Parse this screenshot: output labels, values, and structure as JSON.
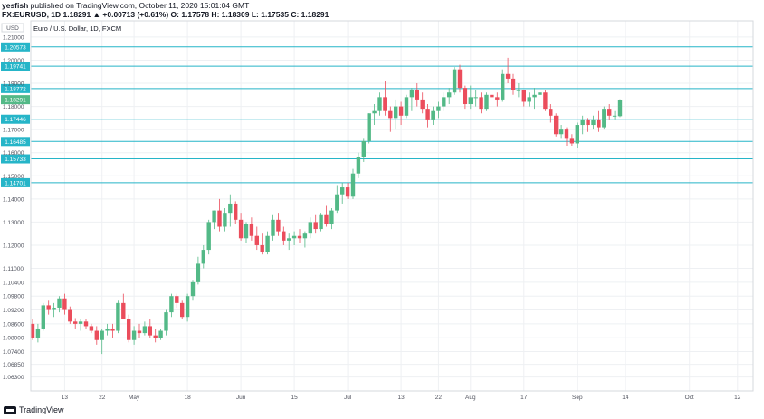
{
  "header": {
    "line1_user": "yesfish",
    "line1_rest": "published on TradingView.com, October 11, 2020 15:01:04 GMT",
    "line2": "FX:EURUSD, 1D  1.18291  ▲ +0.00713 (+0.61%) O: 1.17578  H: 1.18309  L: 1.17535  C: 1.18291"
  },
  "footer": {
    "brand": "TradingView"
  },
  "chart_data": {
    "type": "candlestick",
    "title": "Euro / U.S. Dollar, 1D, FXCM",
    "currency_label": "USD",
    "ylim": [
      1.057,
      1.217
    ],
    "y_ticks": [
      "1.06300",
      "1.06850",
      "1.07400",
      "1.08000",
      "1.08600",
      "1.09200",
      "1.09800",
      "1.10400",
      "1.11000",
      "1.12000",
      "1.13000",
      "1.14000",
      "1.15000",
      "1.16000",
      "1.17000",
      "1.18000",
      "1.19000",
      "1.20000",
      "1.21000"
    ],
    "x_ticks": [
      {
        "label": "13",
        "index": 6
      },
      {
        "label": "22",
        "index": 13
      },
      {
        "label": "May",
        "index": 19
      },
      {
        "label": "18",
        "index": 29
      },
      {
        "label": "Jun",
        "index": 39
      },
      {
        "label": "15",
        "index": 49
      },
      {
        "label": "Jul",
        "index": 59
      },
      {
        "label": "13",
        "index": 69
      },
      {
        "label": "22",
        "index": 76
      },
      {
        "label": "Aug",
        "index": 82
      },
      {
        "label": "17",
        "index": 92
      },
      {
        "label": "Sep",
        "index": 102
      },
      {
        "label": "14",
        "index": 111
      },
      {
        "label": "Oct",
        "index": 123
      },
      {
        "label": "12",
        "index": 132
      }
    ],
    "horizontal_levels": [
      {
        "value": 1.20573,
        "label": "1.20573"
      },
      {
        "value": 1.19741,
        "label": "1.19741"
      },
      {
        "value": 1.18772,
        "label": "1.18772"
      },
      {
        "value": 1.17446,
        "label": "1.17446"
      },
      {
        "value": 1.16485,
        "label": "1.16485"
      },
      {
        "value": 1.15733,
        "label": "1.15733"
      },
      {
        "value": 1.14701,
        "label": "1.14701"
      }
    ],
    "last_price": {
      "value": 1.18291,
      "label": "1.18291"
    },
    "colors": {
      "up": "#53b987",
      "down": "#eb4d5c",
      "level": "#26b5c8",
      "grid": "#eef0f3",
      "axis_text": "#50535e"
    },
    "candles": [
      [
        1.086,
        1.088,
        1.079,
        1.08
      ],
      [
        1.08,
        1.086,
        1.078,
        1.084
      ],
      [
        1.084,
        1.095,
        1.083,
        1.094
      ],
      [
        1.094,
        1.096,
        1.09,
        1.092
      ],
      [
        1.092,
        1.095,
        1.089,
        1.093
      ],
      [
        1.093,
        1.098,
        1.091,
        1.097
      ],
      [
        1.097,
        1.099,
        1.09,
        1.092
      ],
      [
        1.092,
        1.0935,
        1.086,
        1.087
      ],
      [
        1.087,
        1.0885,
        1.084,
        1.086
      ],
      [
        1.086,
        1.088,
        1.083,
        1.087
      ],
      [
        1.087,
        1.088,
        1.084,
        1.085
      ],
      [
        1.085,
        1.086,
        1.082,
        1.083
      ],
      [
        1.083,
        1.085,
        1.077,
        1.079
      ],
      [
        1.079,
        1.084,
        1.073,
        1.083
      ],
      [
        1.083,
        1.086,
        1.081,
        1.084
      ],
      [
        1.084,
        1.086,
        1.08,
        1.083
      ],
      [
        1.083,
        1.096,
        1.082,
        1.095
      ],
      [
        1.095,
        1.099,
        1.088,
        1.088
      ],
      [
        1.088,
        1.09,
        1.078,
        1.079
      ],
      [
        1.079,
        1.085,
        1.077,
        1.083
      ],
      [
        1.083,
        1.086,
        1.08,
        1.082
      ],
      [
        1.082,
        1.087,
        1.081,
        1.085
      ],
      [
        1.085,
        1.088,
        1.08,
        1.081
      ],
      [
        1.081,
        1.084,
        1.078,
        1.08
      ],
      [
        1.08,
        1.084,
        1.079,
        1.083
      ],
      [
        1.083,
        1.092,
        1.081,
        1.091
      ],
      [
        1.091,
        1.099,
        1.089,
        1.098
      ],
      [
        1.098,
        1.099,
        1.093,
        1.095
      ],
      [
        1.095,
        1.096,
        1.088,
        1.089
      ],
      [
        1.089,
        1.099,
        1.087,
        1.098
      ],
      [
        1.098,
        1.105,
        1.096,
        1.104
      ],
      [
        1.104,
        1.115,
        1.103,
        1.112
      ],
      [
        1.112,
        1.12,
        1.11,
        1.118
      ],
      [
        1.118,
        1.131,
        1.116,
        1.13
      ],
      [
        1.13,
        1.135,
        1.127,
        1.135
      ],
      [
        1.135,
        1.14,
        1.126,
        1.128
      ],
      [
        1.128,
        1.136,
        1.126,
        1.134
      ],
      [
        1.134,
        1.142,
        1.128,
        1.138
      ],
      [
        1.138,
        1.139,
        1.129,
        1.131
      ],
      [
        1.131,
        1.134,
        1.122,
        1.123
      ],
      [
        1.123,
        1.13,
        1.121,
        1.129
      ],
      [
        1.129,
        1.132,
        1.122,
        1.124
      ],
      [
        1.124,
        1.128,
        1.118,
        1.12
      ],
      [
        1.12,
        1.125,
        1.116,
        1.117
      ],
      [
        1.117,
        1.126,
        1.116,
        1.124
      ],
      [
        1.124,
        1.133,
        1.122,
        1.131
      ],
      [
        1.131,
        1.134,
        1.124,
        1.126
      ],
      [
        1.126,
        1.128,
        1.12,
        1.122
      ],
      [
        1.122,
        1.125,
        1.118,
        1.123
      ],
      [
        1.123,
        1.126,
        1.12,
        1.124
      ],
      [
        1.124,
        1.127,
        1.121,
        1.123
      ],
      [
        1.123,
        1.126,
        1.119,
        1.125
      ],
      [
        1.125,
        1.132,
        1.123,
        1.13
      ],
      [
        1.13,
        1.133,
        1.125,
        1.127
      ],
      [
        1.127,
        1.134,
        1.126,
        1.133
      ],
      [
        1.133,
        1.137,
        1.128,
        1.129
      ],
      [
        1.129,
        1.136,
        1.127,
        1.135
      ],
      [
        1.135,
        1.146,
        1.134,
        1.142
      ],
      [
        1.142,
        1.147,
        1.138,
        1.145
      ],
      [
        1.145,
        1.147,
        1.14,
        1.141
      ],
      [
        1.141,
        1.153,
        1.14,
        1.151
      ],
      [
        1.151,
        1.16,
        1.149,
        1.158
      ],
      [
        1.158,
        1.166,
        1.156,
        1.165
      ],
      [
        1.165,
        1.177,
        1.164,
        1.177
      ],
      [
        1.177,
        1.181,
        1.172,
        1.178
      ],
      [
        1.178,
        1.186,
        1.176,
        1.184
      ],
      [
        1.184,
        1.191,
        1.176,
        1.178
      ],
      [
        1.178,
        1.18,
        1.169,
        1.175
      ],
      [
        1.175,
        1.183,
        1.17,
        1.18
      ],
      [
        1.18,
        1.182,
        1.172,
        1.176
      ],
      [
        1.176,
        1.185,
        1.175,
        1.184
      ],
      [
        1.184,
        1.188,
        1.178,
        1.187
      ],
      [
        1.187,
        1.19,
        1.18,
        1.183
      ],
      [
        1.183,
        1.186,
        1.177,
        1.179
      ],
      [
        1.179,
        1.181,
        1.171,
        1.174
      ],
      [
        1.174,
        1.18,
        1.172,
        1.178
      ],
      [
        1.178,
        1.182,
        1.175,
        1.18
      ],
      [
        1.18,
        1.186,
        1.178,
        1.184
      ],
      [
        1.184,
        1.188,
        1.181,
        1.186
      ],
      [
        1.186,
        1.197,
        1.185,
        1.196
      ],
      [
        1.196,
        1.198,
        1.186,
        1.188
      ],
      [
        1.188,
        1.189,
        1.179,
        1.181
      ],
      [
        1.181,
        1.189,
        1.179,
        1.184
      ],
      [
        1.184,
        1.187,
        1.18,
        1.184
      ],
      [
        1.184,
        1.186,
        1.177,
        1.179
      ],
      [
        1.179,
        1.186,
        1.178,
        1.185
      ],
      [
        1.185,
        1.188,
        1.182,
        1.184
      ],
      [
        1.184,
        1.186,
        1.18,
        1.183
      ],
      [
        1.183,
        1.196,
        1.182,
        1.194
      ],
      [
        1.194,
        1.201,
        1.19,
        1.192
      ],
      [
        1.192,
        1.194,
        1.185,
        1.187
      ],
      [
        1.187,
        1.19,
        1.184,
        1.187
      ],
      [
        1.187,
        1.187,
        1.18,
        1.182
      ],
      [
        1.182,
        1.186,
        1.18,
        1.184
      ],
      [
        1.184,
        1.188,
        1.179,
        1.185
      ],
      [
        1.185,
        1.188,
        1.182,
        1.186
      ],
      [
        1.186,
        1.187,
        1.178,
        1.179
      ],
      [
        1.179,
        1.181,
        1.173,
        1.176
      ],
      [
        1.176,
        1.177,
        1.167,
        1.168
      ],
      [
        1.168,
        1.172,
        1.166,
        1.17
      ],
      [
        1.17,
        1.171,
        1.163,
        1.166
      ],
      [
        1.166,
        1.168,
        1.163,
        1.164
      ],
      [
        1.164,
        1.173,
        1.162,
        1.172
      ],
      [
        1.172,
        1.176,
        1.168,
        1.174
      ],
      [
        1.174,
        1.175,
        1.169,
        1.172
      ],
      [
        1.172,
        1.176,
        1.17,
        1.174
      ],
      [
        1.174,
        1.178,
        1.169,
        1.171
      ],
      [
        1.171,
        1.18,
        1.17,
        1.179
      ],
      [
        1.179,
        1.181,
        1.174,
        1.176
      ],
      [
        1.176,
        1.178,
        1.174,
        1.176
      ],
      [
        1.1758,
        1.1831,
        1.1754,
        1.1829
      ]
    ]
  }
}
